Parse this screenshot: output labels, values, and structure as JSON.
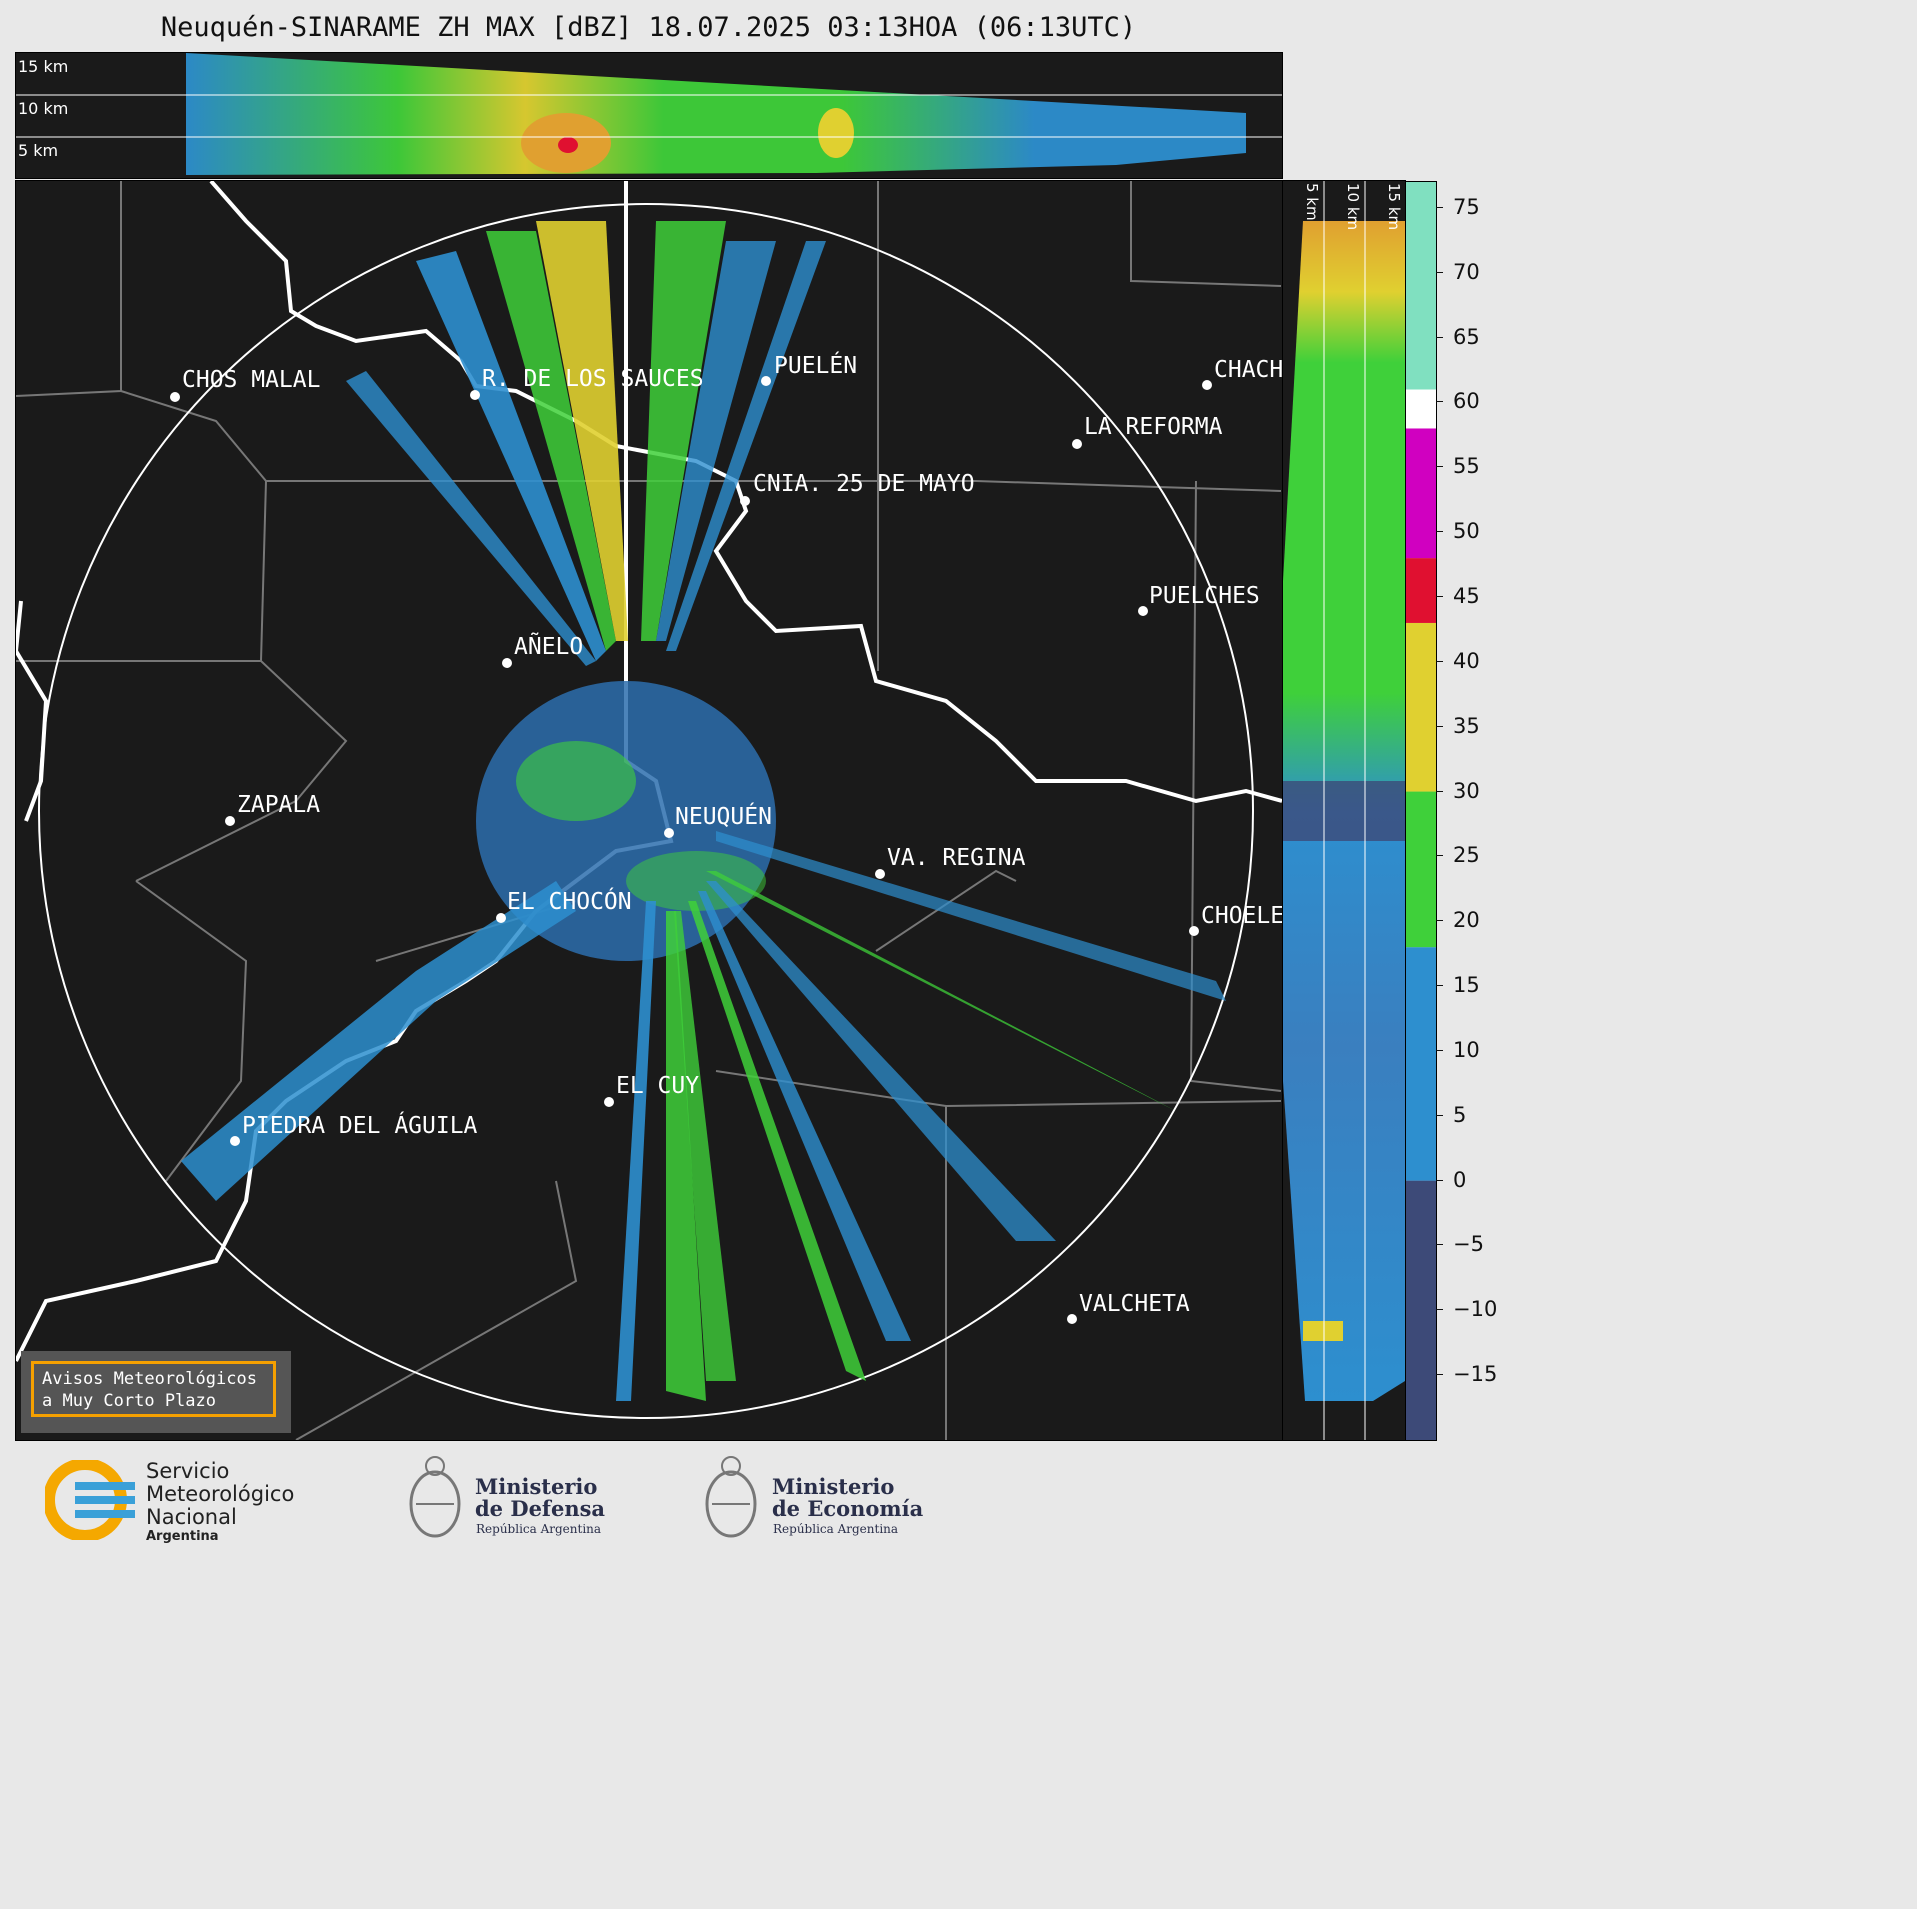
{
  "title": "Neuquén-SINARAME ZH MAX [dBZ] 18.07.2025 03:13HOA (06:13UTC)",
  "top_panel": {
    "height_labels": [
      "15 km",
      "10 km",
      "5 km"
    ]
  },
  "side_panel": {
    "height_labels": [
      "5 km",
      "10 km",
      "15 km"
    ]
  },
  "colorbar": {
    "unit": "dBZ",
    "ticks": [
      "75",
      "70",
      "65",
      "60",
      "55",
      "50",
      "45",
      "40",
      "35",
      "30",
      "25",
      "20",
      "15",
      "10",
      "5",
      "0",
      "−5",
      "−10",
      "−15"
    ],
    "tick_values": [
      75,
      70,
      65,
      60,
      55,
      50,
      45,
      40,
      35,
      30,
      25,
      20,
      15,
      10,
      5,
      0,
      -5,
      -10,
      -15
    ],
    "range": [
      -20,
      77
    ],
    "colors": {
      "below_0": "#3d4a78",
      "0_18": "#2d8fcf",
      "18_30": "#3fd03a",
      "30_43": "#e0d030",
      "43_48": "#e01030",
      "48_58": "#d000c0",
      "58_61": "#ffffff",
      "61_77": "#80e0c0"
    }
  },
  "cities": [
    {
      "name": "CHOS MALAL"
    },
    {
      "name": "R. DE LOS SAUCES"
    },
    {
      "name": "PUELÉN"
    },
    {
      "name": "CHACH"
    },
    {
      "name": "LA REFORMA"
    },
    {
      "name": "CNIA. 25 DE MAYO"
    },
    {
      "name": "PUELCHES"
    },
    {
      "name": "AÑELO"
    },
    {
      "name": "ZAPALA"
    },
    {
      "name": "NEUQUÉN"
    },
    {
      "name": "VA. REGINA"
    },
    {
      "name": "EL CHOCÓN"
    },
    {
      "name": "CHOELE"
    },
    {
      "name": "EL CUY"
    },
    {
      "name": "PIEDRA DEL ÁGUILA"
    },
    {
      "name": "VALCHETA"
    }
  ],
  "notice": {
    "line1": "Avisos Meteorológicos",
    "line2": "a Muy Corto Plazo"
  },
  "logos": {
    "smn": {
      "line1": "Servicio",
      "line2": "Meteorológico",
      "line3": "Nacional",
      "line4": "Argentina"
    },
    "defensa": {
      "line1": "Ministerio",
      "line2": "de Defensa",
      "line3": "República Argentina"
    },
    "economia": {
      "line1": "Ministerio",
      "line2": "de Economía",
      "line3": "República Argentina"
    }
  }
}
